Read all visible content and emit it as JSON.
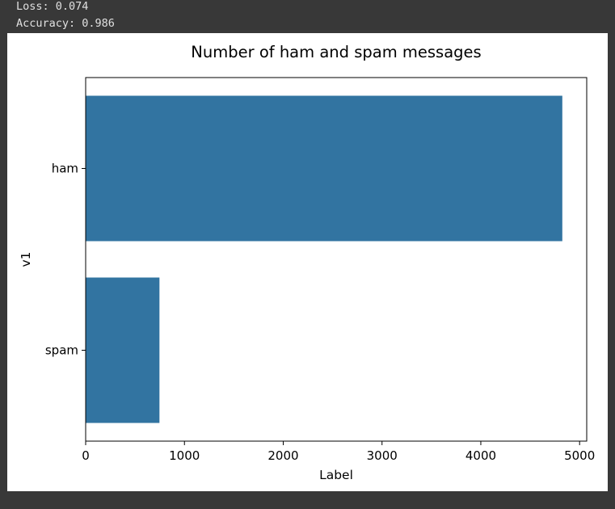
{
  "output": {
    "loss_line": "Loss: 0.074",
    "accuracy_line": "Accuracy: 0.986"
  },
  "colors": {
    "background": "#383838",
    "bar": "#3274a1",
    "text": "#000000"
  },
  "chart_data": {
    "type": "bar",
    "orientation": "horizontal",
    "title": "Number of ham and spam messages",
    "xlabel": "Label",
    "ylabel": "v1",
    "categories": [
      "ham",
      "spam"
    ],
    "values": [
      4825,
      747
    ],
    "xlim": [
      0,
      5072
    ],
    "xticks": [
      0,
      1000,
      2000,
      3000,
      4000,
      5000
    ],
    "xtick_labels": [
      "0",
      "1000",
      "2000",
      "3000",
      "4000",
      "5000"
    ],
    "grid": false
  }
}
